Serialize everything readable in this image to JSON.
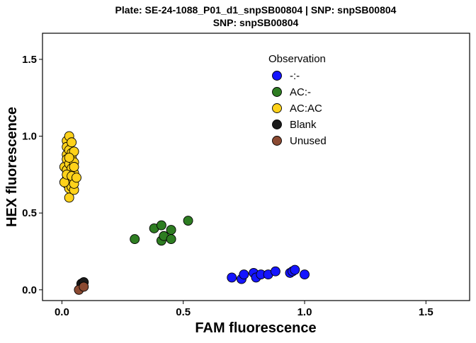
{
  "chart_data": {
    "type": "scatter",
    "title_line1": "Plate: SE-24-1088_P01_d1_snpSB00804 | SNP: snpSB00804",
    "title_line2": "SNP:  snpSB00804",
    "xlabel": "FAM fluorescence",
    "ylabel": "HEX fluorescence",
    "xlim": [
      -0.08,
      1.68
    ],
    "ylim": [
      -0.07,
      1.67
    ],
    "xticks": [
      0.0,
      0.5,
      1.0,
      1.5
    ],
    "yticks": [
      0.0,
      0.5,
      1.0,
      1.5
    ],
    "xtick_labels": [
      "0.0",
      "0.5",
      "1.0",
      "1.5"
    ],
    "ytick_labels": [
      "0.0",
      "0.5",
      "1.0",
      "1.5"
    ],
    "grid": false,
    "legend": {
      "title": "Observation",
      "placement": "top-right-inside"
    },
    "series": [
      {
        "name": "-:-",
        "color": "#1515ff",
        "points": [
          [
            0.7,
            0.08
          ],
          [
            0.74,
            0.07
          ],
          [
            0.75,
            0.1
          ],
          [
            0.79,
            0.11
          ],
          [
            0.8,
            0.08
          ],
          [
            0.82,
            0.1
          ],
          [
            0.85,
            0.1
          ],
          [
            0.88,
            0.12
          ],
          [
            0.94,
            0.11
          ],
          [
            0.95,
            0.12
          ],
          [
            0.96,
            0.13
          ],
          [
            1.0,
            0.1
          ]
        ]
      },
      {
        "name": "AC:-",
        "color": "#2e7d22",
        "points": [
          [
            0.3,
            0.33
          ],
          [
            0.38,
            0.4
          ],
          [
            0.41,
            0.42
          ],
          [
            0.41,
            0.32
          ],
          [
            0.42,
            0.35
          ],
          [
            0.45,
            0.39
          ],
          [
            0.45,
            0.33
          ],
          [
            0.52,
            0.45
          ]
        ]
      },
      {
        "name": "AC:AC",
        "color": "#ffd21a",
        "points": [
          [
            0.01,
            0.8
          ],
          [
            0.02,
            0.97
          ],
          [
            0.02,
            0.93
          ],
          [
            0.02,
            0.88
          ],
          [
            0.02,
            0.85
          ],
          [
            0.02,
            0.78
          ],
          [
            0.02,
            0.72
          ],
          [
            0.02,
            0.69
          ],
          [
            0.03,
            1.0
          ],
          [
            0.03,
            0.91
          ],
          [
            0.03,
            0.82
          ],
          [
            0.03,
            0.75
          ],
          [
            0.03,
            0.66
          ],
          [
            0.03,
            0.6
          ],
          [
            0.04,
            0.96
          ],
          [
            0.04,
            0.89
          ],
          [
            0.04,
            0.86
          ],
          [
            0.04,
            0.79
          ],
          [
            0.04,
            0.71
          ],
          [
            0.04,
            0.67
          ],
          [
            0.05,
            0.9
          ],
          [
            0.05,
            0.83
          ],
          [
            0.05,
            0.76
          ],
          [
            0.05,
            0.73
          ],
          [
            0.05,
            0.65
          ],
          [
            0.01,
            0.7
          ],
          [
            0.02,
            0.75
          ],
          [
            0.04,
            0.74
          ],
          [
            0.05,
            0.69
          ],
          [
            0.06,
            0.73
          ],
          [
            0.03,
            0.86
          ],
          [
            0.05,
            0.8
          ]
        ]
      },
      {
        "name": "Blank",
        "color": "#1a1a1a",
        "points": [
          [
            0.08,
            0.04
          ],
          [
            0.09,
            0.05
          ]
        ]
      },
      {
        "name": "Unused",
        "color": "#8b4a32",
        "points": [
          [
            0.07,
            0.0
          ],
          [
            0.09,
            0.02
          ]
        ]
      }
    ]
  }
}
